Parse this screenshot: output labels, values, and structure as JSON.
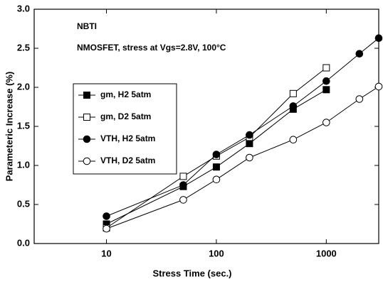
{
  "chart_data": {
    "type": "line",
    "xlabel": "Stress Time (sec.)",
    "ylabel": "Parameteric Increase (%)",
    "annotations": [
      "NBTI",
      "NMOSFET, stress at Vgs=2.8V, 100°C"
    ],
    "xscale": "log",
    "xlim": [
      2.2,
      3000
    ],
    "xticks": [
      10,
      100,
      1000
    ],
    "ylim": [
      0,
      3
    ],
    "yticks": [
      {
        "value": 0,
        "label": "0.0"
      },
      {
        "value": 0.5,
        "label": "0.5"
      },
      {
        "value": 1,
        "label": "1.0"
      },
      {
        "value": 1.5,
        "label": "1.5"
      },
      {
        "value": 2,
        "label": "2.0"
      },
      {
        "value": 2.5,
        "label": "2.5"
      },
      {
        "value": 3,
        "label": "3.0"
      }
    ],
    "legend": "left",
    "series": [
      {
        "name": "gm, H2 5atm",
        "color": "#000000",
        "marker": "square",
        "filled": true,
        "x": [
          10,
          50,
          100,
          200,
          500,
          1000
        ],
        "values": [
          0.25,
          0.73,
          0.98,
          1.28,
          1.72,
          1.97
        ]
      },
      {
        "name": "gm, D2 5atm",
        "color": "#000000",
        "marker": "square",
        "filled": false,
        "x": [
          10,
          50,
          100,
          200,
          500,
          1000
        ],
        "values": [
          0.2,
          0.86,
          1.12,
          1.36,
          1.92,
          2.25
        ]
      },
      {
        "name": "VTH, H2 5atm",
        "color": "#000000",
        "marker": "circle",
        "filled": true,
        "x": [
          10,
          50,
          100,
          200,
          500,
          1000,
          2000,
          3000
        ],
        "values": [
          0.35,
          0.75,
          1.14,
          1.39,
          1.76,
          2.08,
          2.43,
          2.63
        ]
      },
      {
        "name": "VTH, D2 5atm",
        "color": "#000000",
        "marker": "circle",
        "filled": false,
        "x": [
          10,
          50,
          100,
          200,
          500,
          1000,
          2000,
          3000
        ],
        "values": [
          0.19,
          0.56,
          0.82,
          1.1,
          1.33,
          1.55,
          1.85,
          2.01
        ]
      }
    ]
  }
}
